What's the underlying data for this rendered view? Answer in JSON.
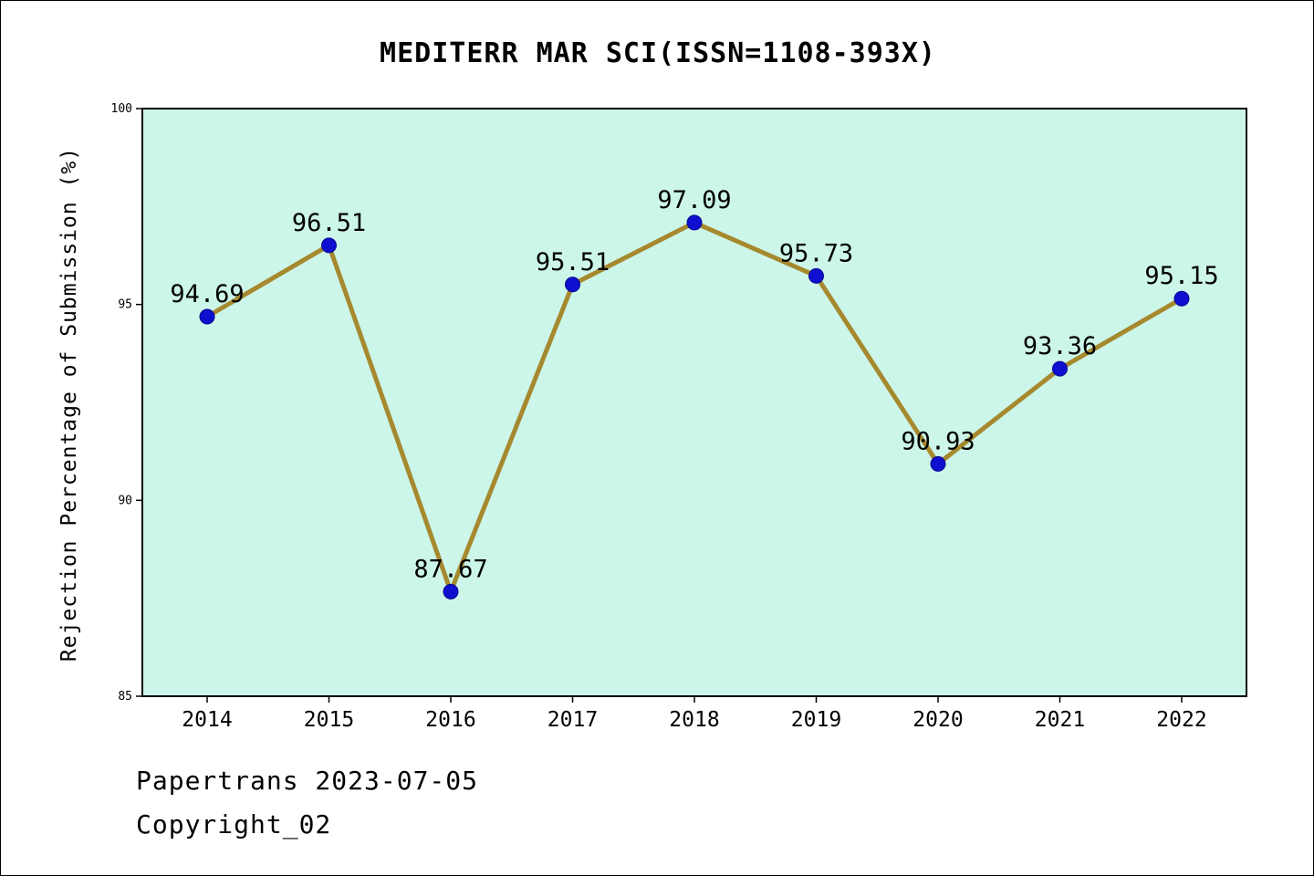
{
  "chart_data": {
    "type": "line",
    "title": "MEDITERR MAR SCI(ISSN=1108-393X)",
    "xlabel": "",
    "ylabel": "Rejection Percentage of Submission (%)",
    "x": [
      2014,
      2015,
      2016,
      2017,
      2018,
      2019,
      2020,
      2021,
      2022
    ],
    "values": [
      94.69,
      96.51,
      87.67,
      95.51,
      97.09,
      95.73,
      90.93,
      93.36,
      95.15
    ],
    "ylim": [
      85,
      100
    ],
    "yticks": [
      85,
      90,
      95,
      100
    ],
    "grid": false,
    "legend": "none",
    "line_color": "#a6892f",
    "marker_color": "#0f0fd0",
    "plot_bg": "#ccf6e9",
    "axis_color": "#000000"
  },
  "footer": {
    "line1": "Papertrans 2023-07-05",
    "line2": "Copyright_02"
  }
}
